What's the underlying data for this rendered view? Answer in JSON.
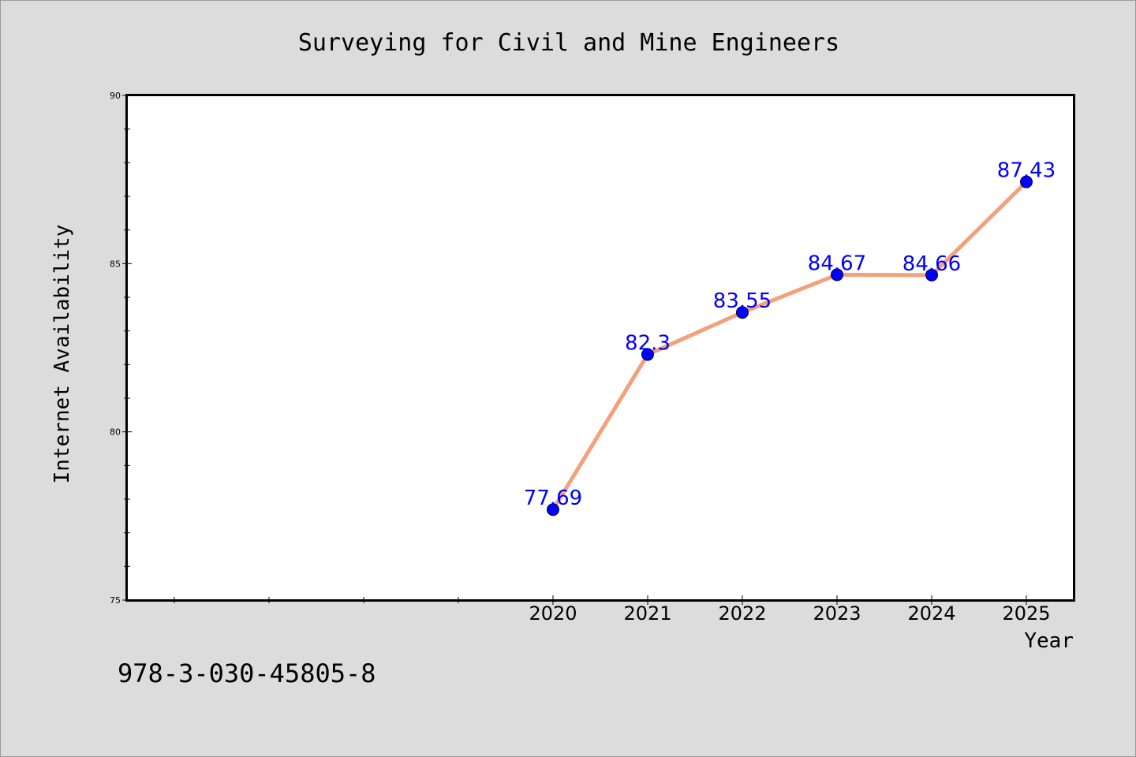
{
  "chart_data": {
    "type": "line",
    "title": "Surveying for Civil and Mine Engineers",
    "xlabel": "Year",
    "ylabel": "Internet Availability",
    "categories": [
      "2020",
      "2021",
      "2022",
      "2023",
      "2024",
      "2025"
    ],
    "x": [
      2020,
      2021,
      2022,
      2023,
      2024,
      2025
    ],
    "series": [
      {
        "values": [
          77.69,
          82.3,
          83.55,
          84.67,
          84.66,
          87.43
        ],
        "labels": [
          "77.69",
          "82.3",
          "83.55",
          "84.67",
          "84.66",
          "87.43"
        ]
      }
    ],
    "xlim": [
      2015.5,
      2025.5
    ],
    "ylim": [
      75,
      90
    ],
    "yticks": [
      75,
      80,
      85,
      90
    ],
    "ytick_labels": [
      "75",
      "80",
      "85",
      "90"
    ],
    "y_minor_step": 1,
    "x_minor_ticks": [
      2016,
      2017,
      2018,
      2019
    ],
    "grid": false,
    "legend": "none"
  },
  "footnote": "978-3-030-45805-8",
  "colors": {
    "figure_background": "#dcdcdc",
    "plot_background": "#ffffff",
    "line": "#f4a07a",
    "marker": "#0000ff",
    "data_label": "#0000ff",
    "axes": "#000000"
  }
}
